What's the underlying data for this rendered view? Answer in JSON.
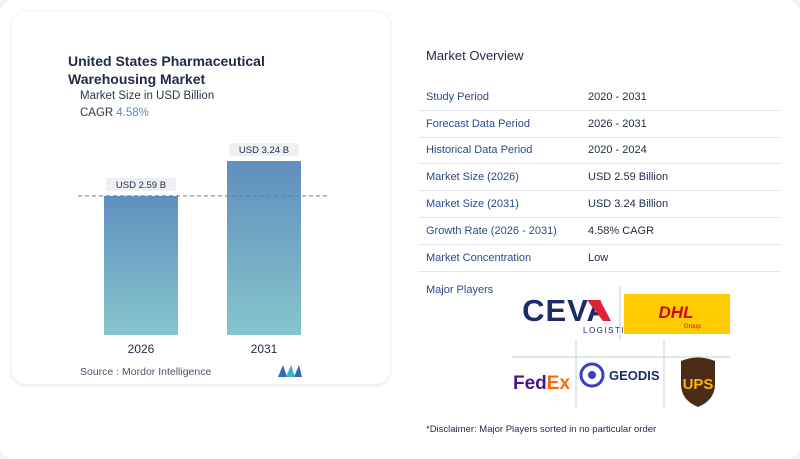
{
  "chart": {
    "title": "United States Pharmaceutical Warehousing Market",
    "subtitle": "Market Size in USD Billion",
    "cagr_label": "CAGR",
    "cagr_value": "4.58%",
    "source": "Source : Mordor Intelligence"
  },
  "chart_data": {
    "type": "bar",
    "categories": [
      "2026",
      "2031"
    ],
    "values": [
      2.59,
      3.24
    ],
    "data_labels": [
      "USD 2.59 B",
      "USD 3.24 B"
    ],
    "ylim": [
      0,
      3.24
    ],
    "reference_line": 2.59,
    "colors": {
      "bar_top": "#5f8fbe",
      "bar_bottom": "#86c5cc",
      "label_bg": "#eef0f3"
    }
  },
  "overview": {
    "title": "Market Overview",
    "rows": [
      {
        "key": "Study Period",
        "value": "2020 - 2031"
      },
      {
        "key": "Forecast Data Period",
        "value": "2026 - 2031"
      },
      {
        "key": "Historical Data Period",
        "value": "2020 - 2024"
      },
      {
        "key": "Market Size (2026)",
        "value": "USD 2.59 Billion"
      },
      {
        "key": "Market Size (2031)",
        "value": "USD 3.24 Billion"
      },
      {
        "key": "Growth Rate (2026 - 2031)",
        "value": "4.58% CAGR"
      },
      {
        "key": "Market Concentration",
        "value": "Low"
      }
    ],
    "major_players_label": "Major Players",
    "players": {
      "ceva_word": "CEVA",
      "ceva_sub": "LOGISTICS",
      "dhl_word": "DHL",
      "dhl_sub": "Group",
      "fedex_fed": "Fed",
      "fedex_ex": "Ex",
      "geodis": "GEODIS",
      "ups": "UPS"
    },
    "disclaimer": "*Disclaimer: Major Players sorted in no particular order"
  }
}
